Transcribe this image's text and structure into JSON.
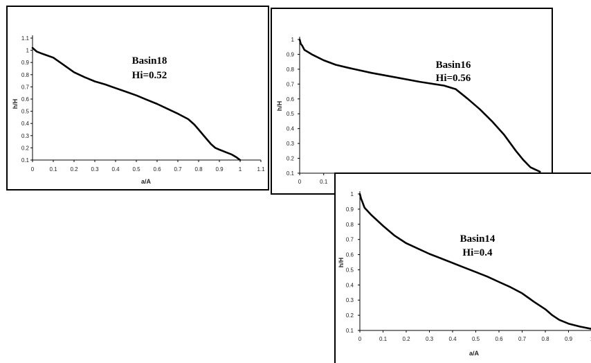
{
  "chart_data": [
    {
      "type": "line",
      "title": "Basin18",
      "subtitle": "Hi=0.52",
      "xlabel": "a/A",
      "ylabel": "h/H",
      "xlim": [
        0,
        1.1
      ],
      "ylim": [
        0.1,
        1.1
      ],
      "x_ticks": [
        "0",
        "0.1",
        "0.2",
        "0.3",
        "0.4",
        "0.5",
        "0.6",
        "0.7",
        "0.8",
        "0.9",
        "1",
        "1.1"
      ],
      "y_ticks": [
        "0.1",
        "0.2",
        "0.3",
        "0.4",
        "0.5",
        "0.6",
        "0.7",
        "0.8",
        "0.9",
        "1",
        "1.1"
      ],
      "grid": false,
      "series": [
        {
          "x": [
            0,
            0.02,
            0.05,
            0.1,
            0.15,
            0.2,
            0.25,
            0.3,
            0.35,
            0.4,
            0.45,
            0.5,
            0.55,
            0.6,
            0.65,
            0.7,
            0.75,
            0.78,
            0.8,
            0.83,
            0.86,
            0.88,
            0.9,
            0.93,
            0.96,
            0.98,
            1.0
          ],
          "y": [
            1.02,
            0.99,
            0.97,
            0.94,
            0.88,
            0.82,
            0.78,
            0.745,
            0.72,
            0.69,
            0.66,
            0.63,
            0.595,
            0.56,
            0.52,
            0.48,
            0.435,
            0.39,
            0.35,
            0.29,
            0.23,
            0.2,
            0.185,
            0.165,
            0.145,
            0.125,
            0.1
          ]
        }
      ]
    },
    {
      "type": "line",
      "title": "Basin16",
      "subtitle": "Hi=0.56",
      "xlabel": "",
      "ylabel": "h/H",
      "xlim": [
        0,
        1.1
      ],
      "ylim": [
        0.1,
        1
      ],
      "x_ticks": [
        "0",
        "0.1"
      ],
      "y_ticks": [
        "0.1",
        "0.2",
        "0.3",
        "0.4",
        "0.5",
        "0.6",
        "0.7",
        "0.8",
        "0.9",
        "1"
      ],
      "grid": false,
      "series": [
        {
          "x": [
            0,
            0.005,
            0.01,
            0.02,
            0.05,
            0.1,
            0.15,
            0.2,
            0.3,
            0.4,
            0.5,
            0.6,
            0.65,
            0.7,
            0.75,
            0.8,
            0.85,
            0.9,
            0.93,
            0.96,
            1.0
          ],
          "y": [
            1.0,
            0.97,
            0.96,
            0.93,
            0.9,
            0.86,
            0.83,
            0.81,
            0.775,
            0.745,
            0.715,
            0.69,
            0.665,
            0.6,
            0.53,
            0.45,
            0.36,
            0.25,
            0.19,
            0.14,
            0.11
          ]
        }
      ]
    },
    {
      "type": "line",
      "title": "Basin14",
      "subtitle": "Hi=0.4",
      "xlabel": "a/A",
      "ylabel": "h/H",
      "xlim": [
        0,
        1
      ],
      "ylim": [
        0.1,
        1
      ],
      "x_ticks": [
        "0",
        "0.1",
        "0.2",
        "0.3",
        "0.4",
        "0.5",
        "0.6",
        "0.7",
        "0.8",
        "0.9",
        "1"
      ],
      "y_ticks": [
        "0.1",
        "0.2",
        "0.3",
        "0.4",
        "0.5",
        "0.6",
        "0.7",
        "0.8",
        "0.9",
        "1"
      ],
      "grid": false,
      "series": [
        {
          "x": [
            0,
            0.005,
            0.01,
            0.02,
            0.05,
            0.1,
            0.15,
            0.2,
            0.25,
            0.3,
            0.35,
            0.4,
            0.45,
            0.5,
            0.55,
            0.6,
            0.65,
            0.7,
            0.75,
            0.8,
            0.83,
            0.86,
            0.9,
            0.95,
            1.0
          ],
          "y": [
            1.0,
            0.97,
            0.95,
            0.91,
            0.86,
            0.79,
            0.725,
            0.675,
            0.64,
            0.605,
            0.575,
            0.545,
            0.515,
            0.485,
            0.455,
            0.42,
            0.385,
            0.345,
            0.29,
            0.24,
            0.2,
            0.17,
            0.145,
            0.125,
            0.11
          ]
        }
      ]
    }
  ]
}
